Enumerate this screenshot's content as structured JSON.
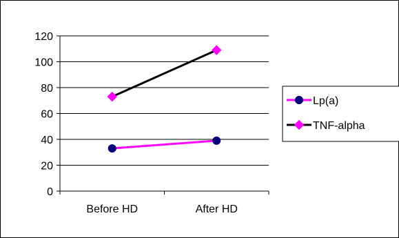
{
  "chart_data": {
    "type": "line",
    "title": "",
    "xlabel": "",
    "ylabel": "",
    "categories": [
      "Before HD",
      "After HD"
    ],
    "ylim": [
      0,
      120
    ],
    "yticks": [
      "0",
      "20",
      "40",
      "60",
      "80",
      "100",
      "120"
    ],
    "grid": "horizontal",
    "legend_position": "right",
    "series": [
      {
        "name": "Lp(a)",
        "values": [
          33,
          39
        ],
        "line_color": "#ff00ff",
        "marker": "circle",
        "marker_color": "#000080"
      },
      {
        "name": "TNF-alpha",
        "values": [
          73,
          109
        ],
        "line_color": "#000000",
        "marker": "diamond",
        "marker_color": "#ff00ff"
      }
    ]
  }
}
